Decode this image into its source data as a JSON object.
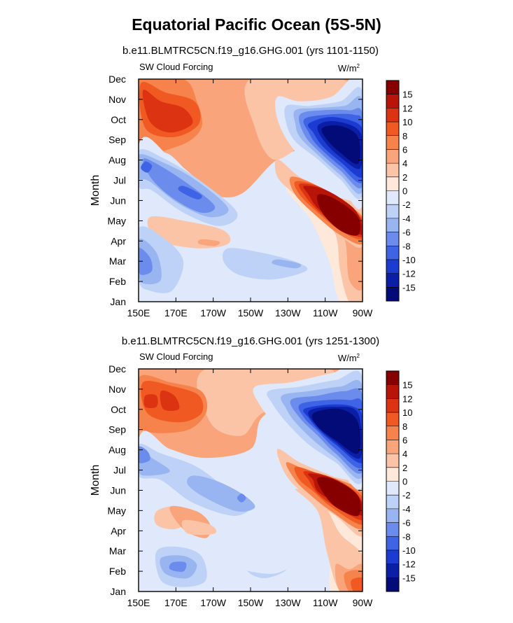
{
  "title": "Equatorial Pacific Ocean (5S-5N)",
  "panels": [
    {
      "subtitle": "b.e11.BLMTRC5CN.f19_g16.GHG.001 (yrs 1101-1150)",
      "left_label": "SW Cloud Forcing",
      "units": {
        "base": "W/m",
        "exponent": "2"
      },
      "ylabel": "Month"
    },
    {
      "subtitle": "b.e11.BLMTRC5CN.f19_g16.GHG.001 (yrs 1251-1300)",
      "left_label": "SW Cloud Forcing",
      "units": {
        "base": "W/m",
        "exponent": "2"
      },
      "ylabel": "Month"
    }
  ],
  "chart_data": [
    {
      "type": "heatmap",
      "title": "b.e11.BLMTRC5CN.f19_g16.GHG.001 (yrs 1101-1150)",
      "variable": "SW Cloud Forcing",
      "units": "W/m2",
      "xlabel": "",
      "ylabel": "Month",
      "x_ticks": [
        "150E",
        "170E",
        "170W",
        "150W",
        "130W",
        "110W",
        "90W"
      ],
      "y_ticks": [
        "Jan",
        "Feb",
        "Mar",
        "Apr",
        "May",
        "Jun",
        "Jul",
        "Aug",
        "Sep",
        "Oct",
        "Nov",
        "Dec"
      ],
      "lon_range": [
        150,
        270
      ],
      "colorbar_levels": [
        "15",
        "12",
        "10",
        "8",
        "6",
        "4",
        "2",
        "0",
        "-2",
        "-4",
        "-6",
        "-8",
        "-10",
        "-12",
        "-15"
      ],
      "colorbar_colors": [
        "#870000",
        "#b81508",
        "#dc3413",
        "#f05a22",
        "#f6834b",
        "#f9a47a",
        "#fbc4a7",
        "#fde8da",
        "#dfe9fb",
        "#bed1f6",
        "#98b5f1",
        "#6b8ced",
        "#3f63e5",
        "#1c3bd1",
        "#0a1fa6",
        "#030b78"
      ],
      "features": [
        {
          "lon": 160,
          "month": 10.5,
          "value": 10
        },
        {
          "lon": 175,
          "month": 10.3,
          "value": 8
        },
        {
          "lon": 245,
          "month": 9,
          "value": -15
        },
        {
          "lon": 255,
          "month": 8.4,
          "value": -15
        },
        {
          "lon": 158,
          "month": 7.5,
          "value": -8
        },
        {
          "lon": 185,
          "month": 6.9,
          "value": -8
        },
        {
          "lon": 200,
          "month": 6.2,
          "value": -6
        },
        {
          "lon": 252,
          "month": 5.2,
          "value": 15
        },
        {
          "lon": 243,
          "month": 6.2,
          "value": 12
        },
        {
          "lon": 152,
          "month": 2,
          "value": -10
        },
        {
          "lon": 190,
          "month": 3.8,
          "value": 2
        },
        {
          "lon": 222,
          "month": 2,
          "value": -6
        },
        {
          "lon": 225,
          "month": 1,
          "value": -2
        }
      ]
    },
    {
      "type": "heatmap",
      "title": "b.e11.BLMTRC5CN.f19_g16.GHG.001 (yrs 1251-1300)",
      "variable": "SW Cloud Forcing",
      "units": "W/m2",
      "xlabel": "",
      "ylabel": "Month",
      "x_ticks": [
        "150E",
        "170E",
        "170W",
        "150W",
        "130W",
        "110W",
        "90W"
      ],
      "y_ticks": [
        "Jan",
        "Feb",
        "Mar",
        "Apr",
        "May",
        "Jun",
        "Jul",
        "Aug",
        "Sep",
        "Oct",
        "Nov",
        "Dec"
      ],
      "lon_range": [
        150,
        270
      ],
      "colorbar_levels": [
        "15",
        "12",
        "10",
        "8",
        "6",
        "4",
        "2",
        "0",
        "-2",
        "-4",
        "-6",
        "-8",
        "-10",
        "-12",
        "-15"
      ],
      "colorbar_colors": [
        "#870000",
        "#b81508",
        "#dc3413",
        "#f05a22",
        "#f6834b",
        "#f9a47a",
        "#fbc4a7",
        "#fde8da",
        "#dfe9fb",
        "#bed1f6",
        "#98b5f1",
        "#6b8ced",
        "#3f63e5",
        "#1c3bd1",
        "#0a1fa6",
        "#030b78"
      ],
      "features": [
        {
          "lon": 168,
          "month": 10.2,
          "value": 10
        },
        {
          "lon": 160,
          "month": 10.6,
          "value": 8
        },
        {
          "lon": 250,
          "month": 9,
          "value": -15
        },
        {
          "lon": 258,
          "month": 8.5,
          "value": -15
        },
        {
          "lon": 151,
          "month": 8,
          "value": -10
        },
        {
          "lon": 185,
          "month": 6.8,
          "value": -6
        },
        {
          "lon": 205,
          "month": 5.5,
          "value": -8
        },
        {
          "lon": 255,
          "month": 5.2,
          "value": 15
        },
        {
          "lon": 243,
          "month": 6.2,
          "value": 12
        },
        {
          "lon": 170,
          "month": 1.5,
          "value": -10
        },
        {
          "lon": 175,
          "month": 4,
          "value": 4
        },
        {
          "lon": 255,
          "month": 0.3,
          "value": 10
        },
        {
          "lon": 215,
          "month": 2.5,
          "value": -4
        }
      ]
    }
  ]
}
